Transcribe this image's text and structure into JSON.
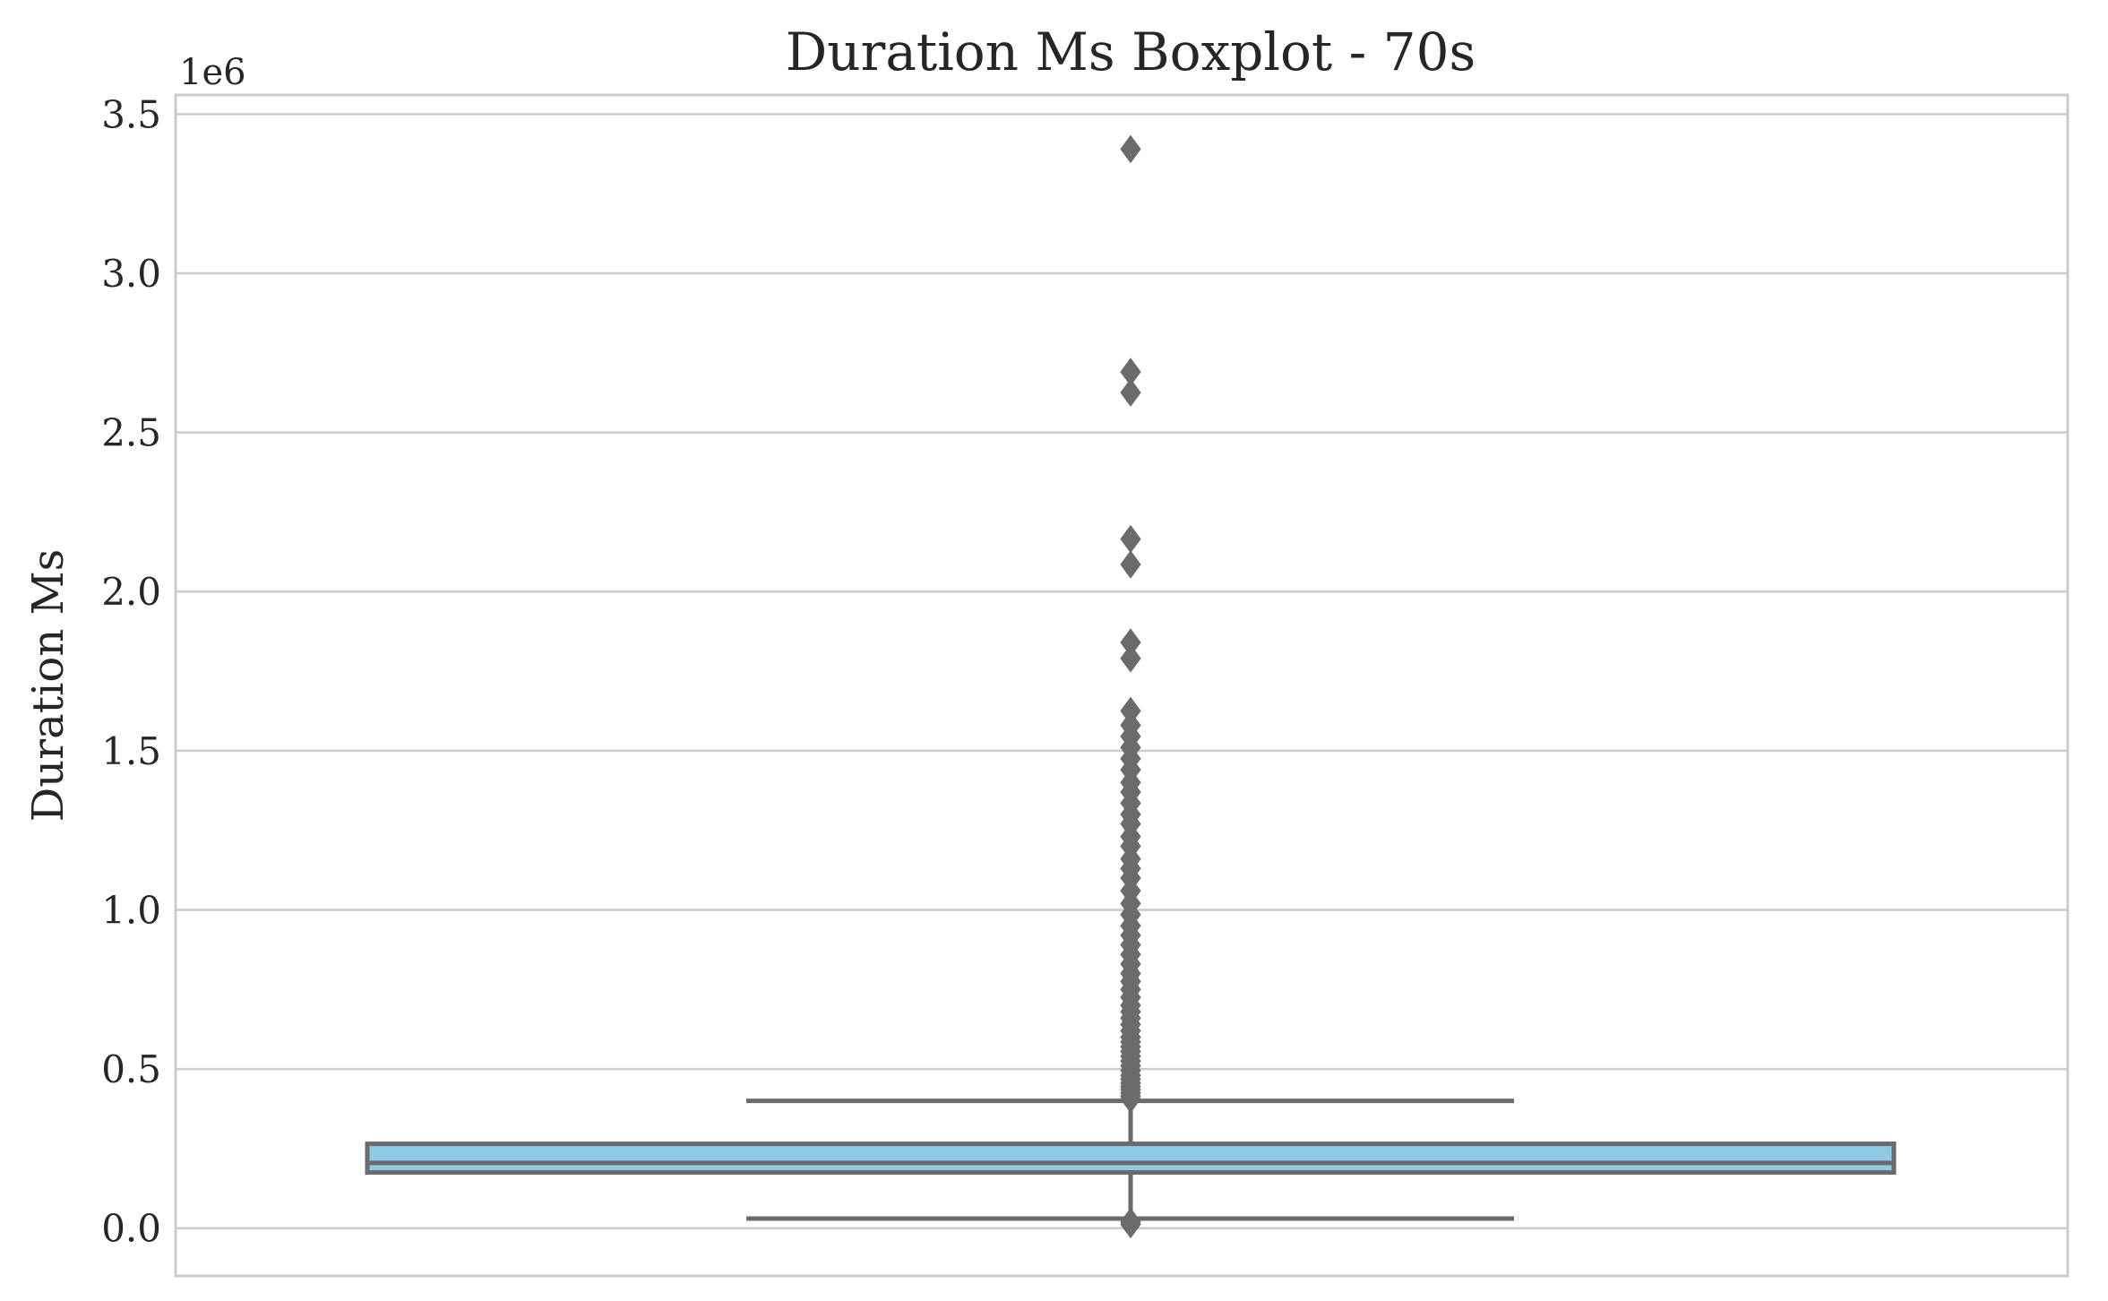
{
  "chart_data": {
    "type": "boxplot",
    "title": "Duration Ms Boxplot - 70s",
    "xlabel": "",
    "ylabel": "Duration Ms",
    "y_offset_label": "1e6",
    "y_ticks": [
      "0.0",
      "0.5",
      "1.0",
      "1.5",
      "2.0",
      "2.5",
      "3.0",
      "3.5"
    ],
    "ylim": [
      -150000,
      3560000
    ],
    "grid": "horizontal",
    "colors": {
      "box_fill": "#8ecae6",
      "lines": "#6b6b6b",
      "grid": "#cccccc",
      "frame": "#cccccc"
    },
    "box": {
      "min": 30000,
      "q1": 175000,
      "median": 205000,
      "q3": 265000,
      "max": 400000
    },
    "outliers": [
      3390000,
      2690000,
      2625000,
      2165000,
      2085000,
      1840000,
      1790000,
      1625000,
      1580000,
      1545000,
      1510000,
      1475000,
      1440000,
      1400000,
      1370000,
      1335000,
      1300000,
      1270000,
      1230000,
      1200000,
      1160000,
      1130000,
      1100000,
      1060000,
      1020000,
      985000,
      950000,
      920000,
      890000,
      860000,
      830000,
      800000,
      775000,
      750000,
      725000,
      700000,
      680000,
      660000,
      640000,
      620000,
      600000,
      585000,
      570000,
      555000,
      540000,
      525000,
      510000,
      495000,
      480000,
      468000,
      456000,
      445000,
      435000,
      425000,
      415000,
      406000,
      20000,
      12000
    ]
  }
}
